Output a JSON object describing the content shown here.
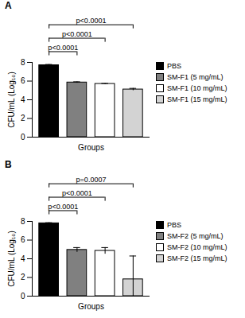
{
  "chart_data": [
    {
      "type": "bar",
      "title": "A",
      "y_label": "CFU/mL (Log₁₀)",
      "x_label": "Groups",
      "categories": [
        "PBS",
        "SM-F1 (5 mg/mL)",
        "SM-F1 (10 mg/mL)",
        "SM-F1 (15 mg/mL)"
      ],
      "values": [
        7.7,
        5.85,
        5.7,
        5.1
      ],
      "errors": [
        0.08,
        0.07,
        0.05,
        0.12
      ],
      "colors": [
        "#000000",
        "#808080",
        "#ffffff",
        "#d3d3d3"
      ],
      "ylim": [
        0,
        8
      ],
      "yticks": [
        0,
        2,
        4,
        6,
        8
      ],
      "legend": "right",
      "tick_labels": "y",
      "annotations": [
        {
          "text": "p<0.0001",
          "between": [
            "PBS",
            "SM-F1 (15 mg/mL)"
          ]
        },
        {
          "text": "p<0.0001",
          "between": [
            "PBS",
            "SM-F1 (10 mg/mL)"
          ]
        },
        {
          "text": "p<0.0001",
          "between": [
            "PBS",
            "SM-F1 (5 mg/mL)"
          ]
        }
      ]
    },
    {
      "type": "bar",
      "title": "B",
      "y_label": "CFU/mL (Log₁₀)",
      "x_label": "Groups",
      "categories": [
        "PBS",
        "SM-F2 (5 mg/mL)",
        "SM-F2 (10 mg/mL)",
        "SM-F2 (15 mg/mL)"
      ],
      "values": [
        7.8,
        4.95,
        4.85,
        1.8
      ],
      "errors": [
        0.06,
        0.25,
        0.35,
        2.5
      ],
      "colors": [
        "#000000",
        "#808080",
        "#ffffff",
        "#d3d3d3"
      ],
      "ylim": [
        0,
        8
      ],
      "yticks": [
        0,
        2,
        4,
        6,
        8
      ],
      "legend": "right",
      "tick_labels": "y",
      "annotations": [
        {
          "text": "p=0.0007",
          "between": [
            "PBS",
            "SM-F2 (15 mg/mL)"
          ]
        },
        {
          "text": "p<0.0001",
          "between": [
            "PBS",
            "SM-F2 (10 mg/mL)"
          ]
        },
        {
          "text": "p<0.0001",
          "between": [
            "PBS",
            "SM-F2 (5 mg/mL)"
          ]
        }
      ]
    }
  ]
}
